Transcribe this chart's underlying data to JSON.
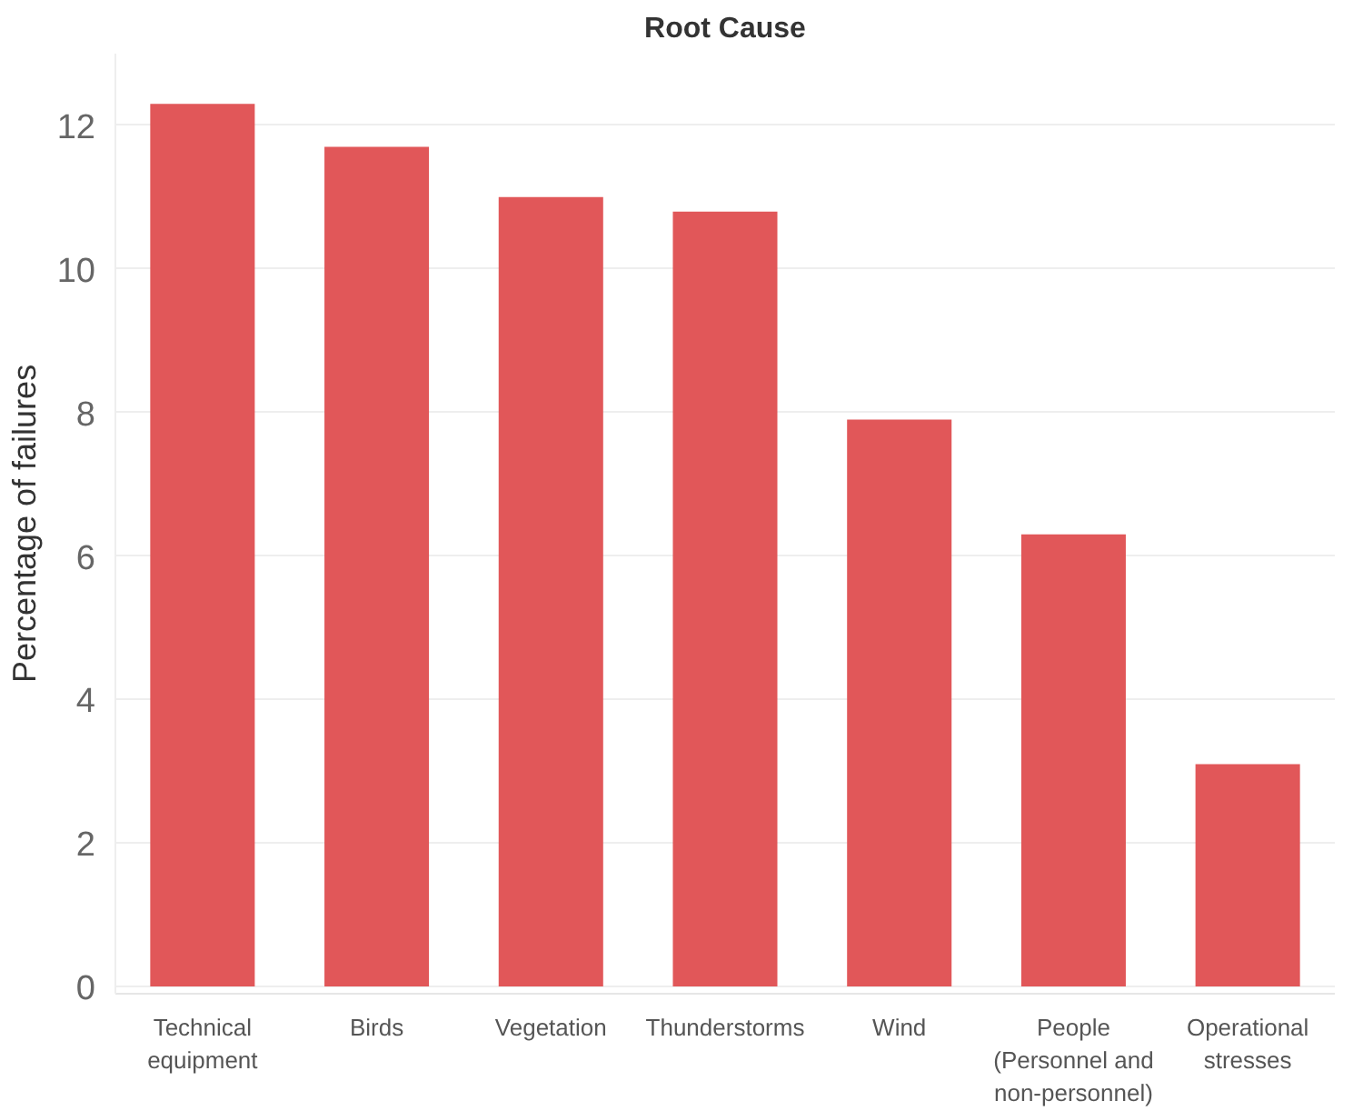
{
  "chart_data": {
    "type": "bar",
    "title": "Root Cause",
    "ylabel": "Percentage of failures",
    "categories": [
      "Technical equipment",
      "Birds",
      "Vegetation",
      "Thunderstorms",
      "Wind",
      "People (Personnel and non-personnel)",
      "Operational stresses"
    ],
    "values": [
      12.3,
      11.7,
      11.0,
      10.8,
      7.9,
      6.3,
      3.1
    ],
    "color": "#e15759",
    "ylim": [
      -0.1,
      13
    ],
    "yticks": [
      0,
      2,
      4,
      6,
      8,
      10,
      12
    ],
    "grid": "y"
  }
}
